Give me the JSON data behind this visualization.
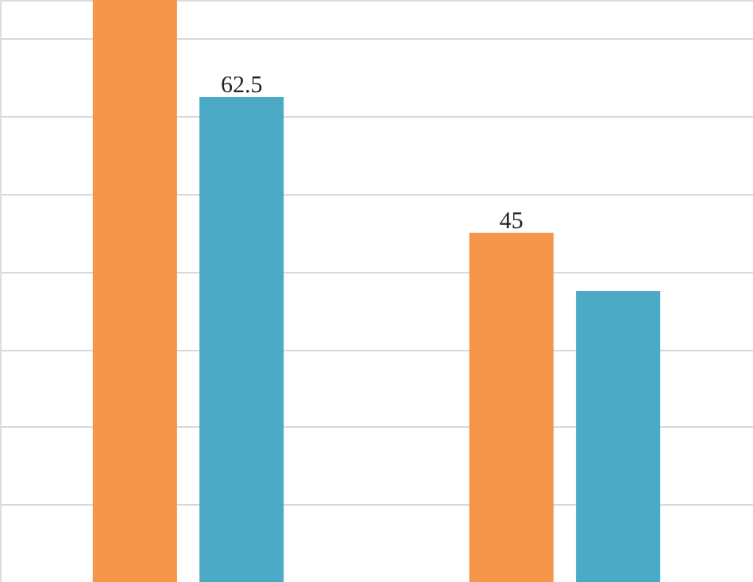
{
  "chart_data": {
    "type": "bar",
    "categories": [
      null,
      null
    ],
    "series": [
      {
        "color": "#f5964a",
        "values": [
          75,
          45
        ],
        "value_labels": [
          null,
          "45"
        ]
      },
      {
        "color": "#4babc6",
        "values": [
          62.5,
          37.5
        ],
        "value_labels": [
          "62.5",
          null
        ]
      }
    ],
    "ylim": [
      0,
      75
    ],
    "yticks": [
      {
        "value": 0,
        "label": null
      },
      {
        "value": 10,
        "label": null
      },
      {
        "value": 20,
        "label": null
      },
      {
        "value": 30,
        "label": null
      },
      {
        "value": 40,
        "label": null
      },
      {
        "value": 50,
        "label": null
      },
      {
        "value": 60,
        "label": null
      },
      {
        "value": 70,
        "label": null
      }
    ],
    "grid": "y"
  }
}
